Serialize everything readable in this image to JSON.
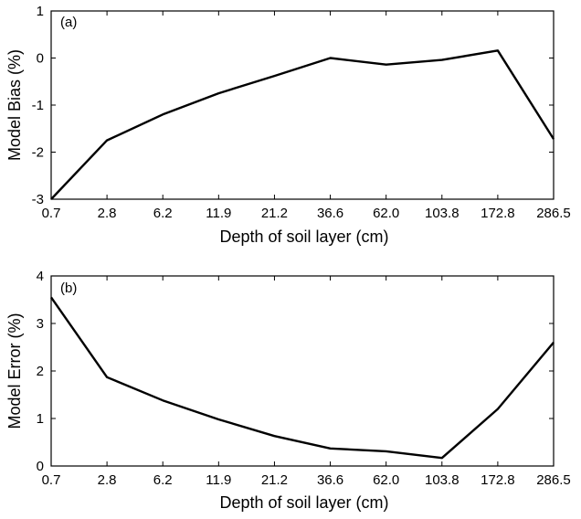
{
  "chart_data": [
    {
      "type": "line",
      "panel_label": "(a)",
      "categories": [
        "0.7",
        "2.8",
        "6.2",
        "11.9",
        "21.2",
        "36.6",
        "62.0",
        "103.8",
        "172.8",
        "286.5"
      ],
      "series": [
        {
          "values": [
            -3.0,
            -1.75,
            -1.2,
            -0.75,
            -0.38,
            0.0,
            -0.14,
            -0.04,
            0.16,
            -1.72
          ]
        }
      ],
      "xlabel": "Depth of soil layer (cm)",
      "ylabel": "Model Bias (%)",
      "ylim": [
        -3,
        1
      ],
      "yticks": [
        "-3",
        "-2",
        "-1",
        "0",
        "1"
      ],
      "grid": false,
      "color": "#000000"
    },
    {
      "type": "line",
      "panel_label": "(b)",
      "categories": [
        "0.7",
        "2.8",
        "6.2",
        "11.9",
        "21.2",
        "36.6",
        "62.0",
        "103.8",
        "172.8",
        "286.5"
      ],
      "series": [
        {
          "values": [
            3.55,
            1.87,
            1.38,
            0.98,
            0.63,
            0.37,
            0.31,
            0.17,
            1.2,
            2.6
          ]
        }
      ],
      "xlabel": "Depth of soil layer (cm)",
      "ylabel": "Model Error (%)",
      "ylim": [
        0,
        4
      ],
      "yticks": [
        "0",
        "1",
        "2",
        "3",
        "4"
      ],
      "grid": false,
      "color": "#000000"
    }
  ]
}
